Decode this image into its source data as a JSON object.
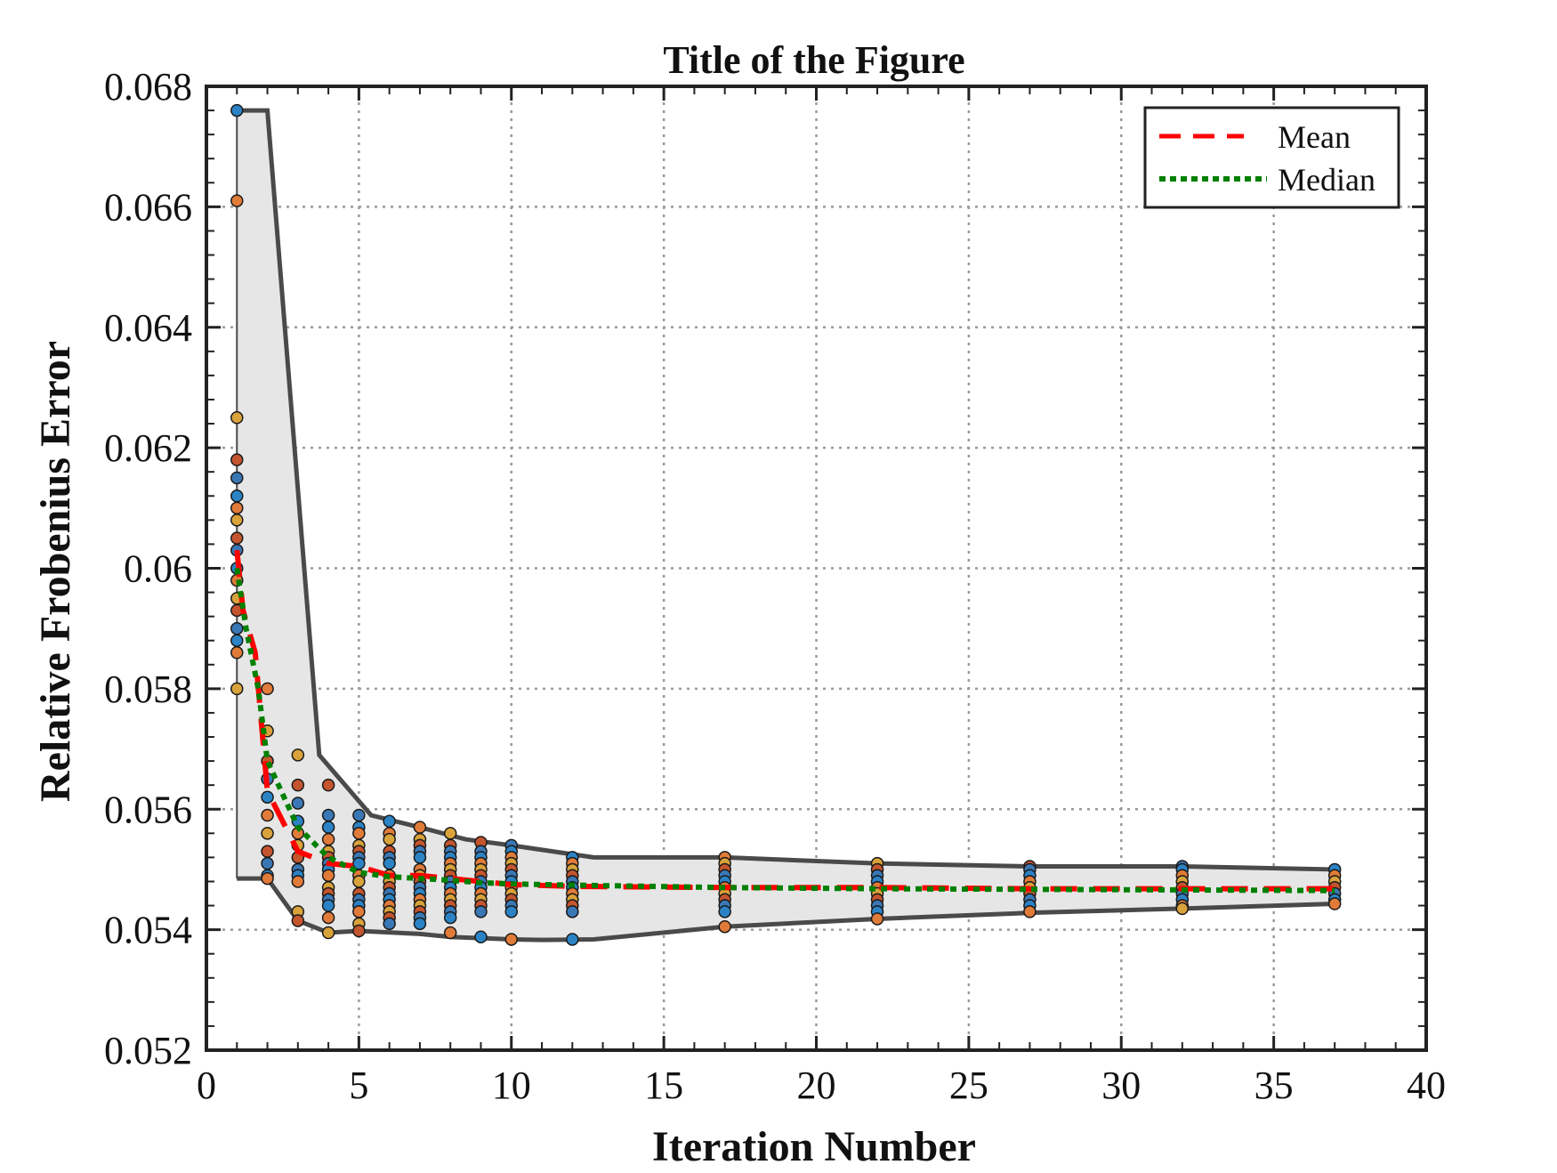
{
  "chart_data": {
    "type": "scatter",
    "title": "Title of the Figure",
    "xlabel": "Iteration Number",
    "ylabel": "Relative Frobenius Error",
    "xlim": [
      0,
      40
    ],
    "ylim": [
      0.052,
      0.068
    ],
    "xticks": [
      0,
      5,
      10,
      15,
      20,
      25,
      30,
      35,
      40
    ],
    "xtick_labels": [
      "0",
      "5",
      "10",
      "15",
      "20",
      "25",
      "30",
      "35",
      "40"
    ],
    "yticks": [
      0.052,
      0.054,
      0.056,
      0.058,
      0.06,
      0.062,
      0.064,
      0.066,
      0.068
    ],
    "ytick_labels": [
      "0.052",
      "0.054",
      "0.056",
      "0.058",
      "0.06",
      "0.062",
      "0.064",
      "0.066",
      "0.068"
    ],
    "grid": true,
    "legend_position": "top-right",
    "colors": {
      "mean": "#ff0000",
      "median": "#008000",
      "band_fill": "#e6e6e6",
      "band_edge": "#4a4a4a",
      "point_palette": [
        "#2b83c6",
        "#e07b39",
        "#d9a23a",
        "#c4552e",
        "#3a78b5"
      ]
    },
    "band_upper": {
      "x": [
        1,
        2,
        3.7,
        5.4,
        7,
        8.5,
        10,
        12.7,
        17,
        22,
        27,
        32,
        37
      ],
      "y": [
        0.0676,
        0.0676,
        0.0569,
        0.0559,
        0.0557,
        0.0555,
        0.0554,
        0.0552,
        0.0552,
        0.0551,
        0.05505,
        0.05505,
        0.055
      ]
    },
    "band_lower": {
      "x": [
        1,
        2,
        3,
        4,
        5,
        7,
        8,
        9,
        10,
        11,
        12.7,
        17,
        22,
        27,
        32,
        37
      ],
      "y": [
        0.05485,
        0.05485,
        0.05415,
        0.05395,
        0.05398,
        0.05393,
        0.05388,
        0.05386,
        0.05384,
        0.05383,
        0.05384,
        0.05405,
        0.05418,
        0.05428,
        0.05435,
        0.05443
      ]
    },
    "series": [
      {
        "name": "Mean",
        "x": [
          1,
          1.2,
          1.6,
          2,
          3,
          4,
          5,
          6,
          7,
          8,
          9,
          10,
          12,
          17,
          22,
          27,
          32,
          37
        ],
        "y": [
          0.0603,
          0.0593,
          0.0586,
          0.0563,
          0.0553,
          0.0551,
          0.05505,
          0.0549,
          0.0549,
          0.05485,
          0.0548,
          0.05475,
          0.05472,
          0.0547,
          0.0547,
          0.05468,
          0.05468,
          0.05468
        ]
      },
      {
        "name": "Median",
        "x": [
          1,
          1.3,
          1.7,
          2,
          3,
          4,
          5,
          6,
          7,
          8,
          9,
          10,
          12,
          17,
          22,
          27,
          32,
          37
        ],
        "y": [
          0.06,
          0.059,
          0.058,
          0.0568,
          0.0557,
          0.0552,
          0.05495,
          0.05488,
          0.05485,
          0.05482,
          0.05478,
          0.05476,
          0.05474,
          0.0547,
          0.05468,
          0.05467,
          0.05466,
          0.05465
        ]
      }
    ],
    "scatter_groups": [
      {
        "x": 1,
        "y": [
          0.0676,
          0.0661,
          0.0625,
          0.0618,
          0.0615,
          0.0612,
          0.061,
          0.0608,
          0.0605,
          0.0603,
          0.06,
          0.0598,
          0.0595,
          0.0593,
          0.059,
          0.0588,
          0.0586,
          0.058
        ]
      },
      {
        "x": 2,
        "y": [
          0.058,
          0.0573,
          0.0568,
          0.0565,
          0.0562,
          0.0559,
          0.0556,
          0.0553,
          0.0551,
          0.0549,
          0.05485
        ]
      },
      {
        "x": 3,
        "y": [
          0.0569,
          0.0564,
          0.0561,
          0.0558,
          0.0556,
          0.0554,
          0.0552,
          0.055,
          0.0549,
          0.0548,
          0.0543,
          0.05415
        ]
      },
      {
        "x": 4,
        "y": [
          0.0564,
          0.0559,
          0.0557,
          0.0555,
          0.0553,
          0.0552,
          0.0551,
          0.055,
          0.0549,
          0.0547,
          0.0546,
          0.0545,
          0.0544,
          0.0542,
          0.05395
        ]
      },
      {
        "x": 5,
        "y": [
          0.0559,
          0.0557,
          0.0556,
          0.0554,
          0.0553,
          0.0552,
          0.0551,
          0.0549,
          0.0548,
          0.0546,
          0.0545,
          0.0544,
          0.0543,
          0.0541,
          0.05398
        ]
      },
      {
        "x": 6,
        "y": [
          0.0558,
          0.0556,
          0.0555,
          0.0553,
          0.0552,
          0.0551,
          0.0549,
          0.0548,
          0.0547,
          0.0546,
          0.0545,
          0.0544,
          0.0543,
          0.0542,
          0.0541
        ]
      },
      {
        "x": 7,
        "y": [
          0.0557,
          0.0555,
          0.0554,
          0.0553,
          0.0552,
          0.055,
          0.0549,
          0.0548,
          0.0547,
          0.0546,
          0.0545,
          0.0544,
          0.0543,
          0.0542,
          0.0541
        ]
      },
      {
        "x": 8,
        "y": [
          0.0556,
          0.0554,
          0.0553,
          0.0552,
          0.0551,
          0.055,
          0.0549,
          0.0548,
          0.0547,
          0.0546,
          0.0545,
          0.0544,
          0.0543,
          0.0542,
          0.05395
        ]
      },
      {
        "x": 9,
        "y": [
          0.05545,
          0.0553,
          0.0552,
          0.0551,
          0.055,
          0.0549,
          0.0548,
          0.0547,
          0.0546,
          0.0545,
          0.0544,
          0.0543,
          0.05388
        ]
      },
      {
        "x": 10,
        "y": [
          0.0554,
          0.0553,
          0.0552,
          0.0551,
          0.055,
          0.0549,
          0.0548,
          0.0547,
          0.0546,
          0.0545,
          0.0544,
          0.0543,
          0.05384
        ]
      },
      {
        "x": 12,
        "y": [
          0.0552,
          0.0551,
          0.055,
          0.0549,
          0.0548,
          0.0547,
          0.0546,
          0.0545,
          0.0544,
          0.0543,
          0.05384
        ]
      },
      {
        "x": 17,
        "y": [
          0.0552,
          0.0551,
          0.055,
          0.0549,
          0.0548,
          0.0547,
          0.0546,
          0.0545,
          0.0544,
          0.0543,
          0.05405
        ]
      },
      {
        "x": 22,
        "y": [
          0.0551,
          0.055,
          0.0549,
          0.0548,
          0.0547,
          0.0546,
          0.0545,
          0.0544,
          0.0543,
          0.05418
        ]
      },
      {
        "x": 27,
        "y": [
          0.05505,
          0.055,
          0.0549,
          0.0548,
          0.0547,
          0.0546,
          0.0545,
          0.0544,
          0.0543
        ]
      },
      {
        "x": 32,
        "y": [
          0.05505,
          0.055,
          0.0549,
          0.0548,
          0.0547,
          0.0546,
          0.0545,
          0.0544,
          0.05435
        ]
      },
      {
        "x": 37,
        "y": [
          0.055,
          0.0549,
          0.0548,
          0.0547,
          0.0546,
          0.0545,
          0.05443
        ]
      }
    ]
  }
}
